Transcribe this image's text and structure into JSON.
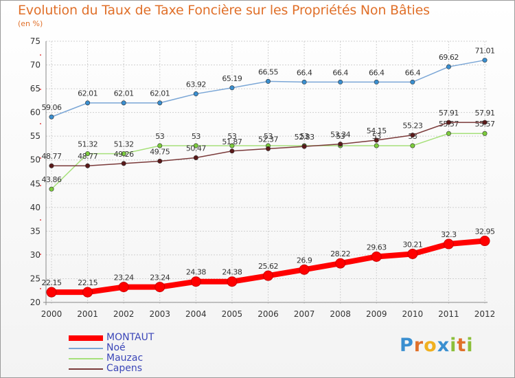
{
  "title": "Evolution du Taux de Taxe Foncière sur les Propriétés Non Bâties",
  "subtitle": "(en %)",
  "logo": {
    "text": "Proxiti",
    "letters": [
      {
        "ch": "P",
        "color": "#3a8fd0"
      },
      {
        "ch": "r",
        "color": "#e0702a"
      },
      {
        "ch": "o",
        "color": "#f0b020"
      },
      {
        "ch": "x",
        "color": "#3a8fd0"
      },
      {
        "ch": "i",
        "color": "#8cbf3a"
      },
      {
        "ch": "t",
        "color": "#e0702a"
      },
      {
        "ch": "i",
        "color": "#8cbf3a"
      }
    ]
  },
  "chart_data": {
    "type": "line",
    "title": "Evolution du Taux de Taxe Foncière sur les Propriétés Non Bâties",
    "ylabel": "(en %)",
    "xlabel": "",
    "ylim": [
      20,
      75
    ],
    "yticks": [
      "20",
      "25",
      "30",
      "35",
      "40",
      "45",
      "50",
      "55",
      "60",
      "65",
      "70",
      "75"
    ],
    "grid": true,
    "legend": "bottom-left",
    "x": [
      "2000",
      "2001",
      "2002",
      "2003",
      "2004",
      "2005",
      "2006",
      "2007",
      "2008",
      "2009",
      "2010",
      "2011",
      "2012"
    ],
    "series": [
      {
        "name": "MONTAUT",
        "color": "#ff0000",
        "emphasis": true,
        "values": [
          22.15,
          22.15,
          23.24,
          23.24,
          24.38,
          24.38,
          25.62,
          26.9,
          28.22,
          29.63,
          30.21,
          32.3,
          32.95
        ],
        "labels": [
          "22.15",
          "22.15",
          "23.24",
          "23.24",
          "24.38",
          "24.38",
          "25.62",
          "26.9",
          "28.22",
          "29.63",
          "30.21",
          "32.3",
          "32.95"
        ]
      },
      {
        "name": "Noé",
        "color": "#7aa6d6",
        "marker": "#3a8fd0",
        "values": [
          59.06,
          62.01,
          62.01,
          62.01,
          63.92,
          65.19,
          66.55,
          66.4,
          66.4,
          66.4,
          66.4,
          69.62,
          71.01
        ],
        "labels": [
          "59.06",
          "62.01",
          "62.01",
          "62.01",
          "63.92",
          "65.19",
          "66.55",
          "66.4",
          "66.4",
          "66.4",
          "66.4",
          "69.62",
          "71.01"
        ]
      },
      {
        "name": "Mauzac",
        "color": "#a6e07a",
        "marker": "#7ccc3c",
        "values": [
          43.86,
          51.32,
          51.32,
          53,
          53,
          53,
          53,
          53,
          53,
          53,
          53,
          55.57,
          55.57
        ],
        "labels": [
          "43.86",
          "51.32",
          "51.32",
          "53",
          "53",
          "53",
          "53",
          "53",
          "53",
          "53",
          "53",
          "55.57",
          "55.57"
        ]
      },
      {
        "name": "Capens",
        "color": "#7a3a3a",
        "marker": "#5a1a1a",
        "values": [
          48.77,
          48.77,
          49.26,
          49.75,
          50.47,
          51.87,
          52.37,
          52.83,
          53.34,
          54.15,
          55.23,
          57.91,
          57.91
        ],
        "labels": [
          "48.77",
          "48.77",
          "49.26",
          "49.75",
          "50.47",
          "51.87",
          "52.37",
          "52.83",
          "53.34",
          "54.15",
          "55.23",
          "57.91",
          "57.91"
        ]
      }
    ]
  }
}
